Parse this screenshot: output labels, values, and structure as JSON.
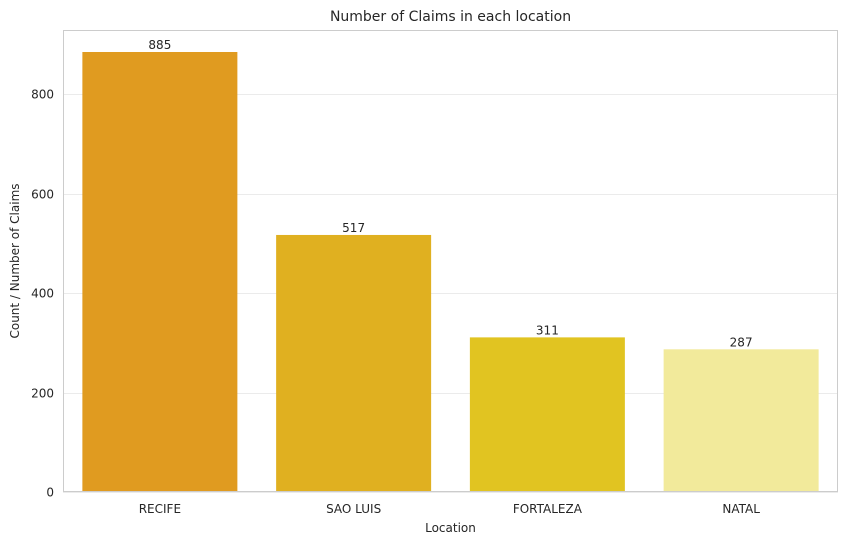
{
  "chart_data": {
    "type": "bar",
    "title": "Number of Claims in each location",
    "xlabel": "Location",
    "ylabel": "Count / Number of Claims",
    "categories": [
      "RECIFE",
      "SAO LUIS",
      "FORTALEZA",
      "NATAL"
    ],
    "values": [
      885,
      517,
      311,
      287
    ],
    "data_labels": [
      "885",
      "517",
      "311",
      "287"
    ],
    "colors": [
      "#E09B20",
      "#E0B020",
      "#E1C421",
      "#F2EA9B"
    ],
    "yticks": [
      0,
      200,
      400,
      600,
      800
    ],
    "ytick_labels": [
      "0",
      "200",
      "400",
      "600",
      "800"
    ],
    "ylim": [
      0,
      929.25
    ],
    "grid": true,
    "grid_color": "#EBEBEB",
    "frame_color": "#CCCCCC",
    "legend": "none"
  }
}
